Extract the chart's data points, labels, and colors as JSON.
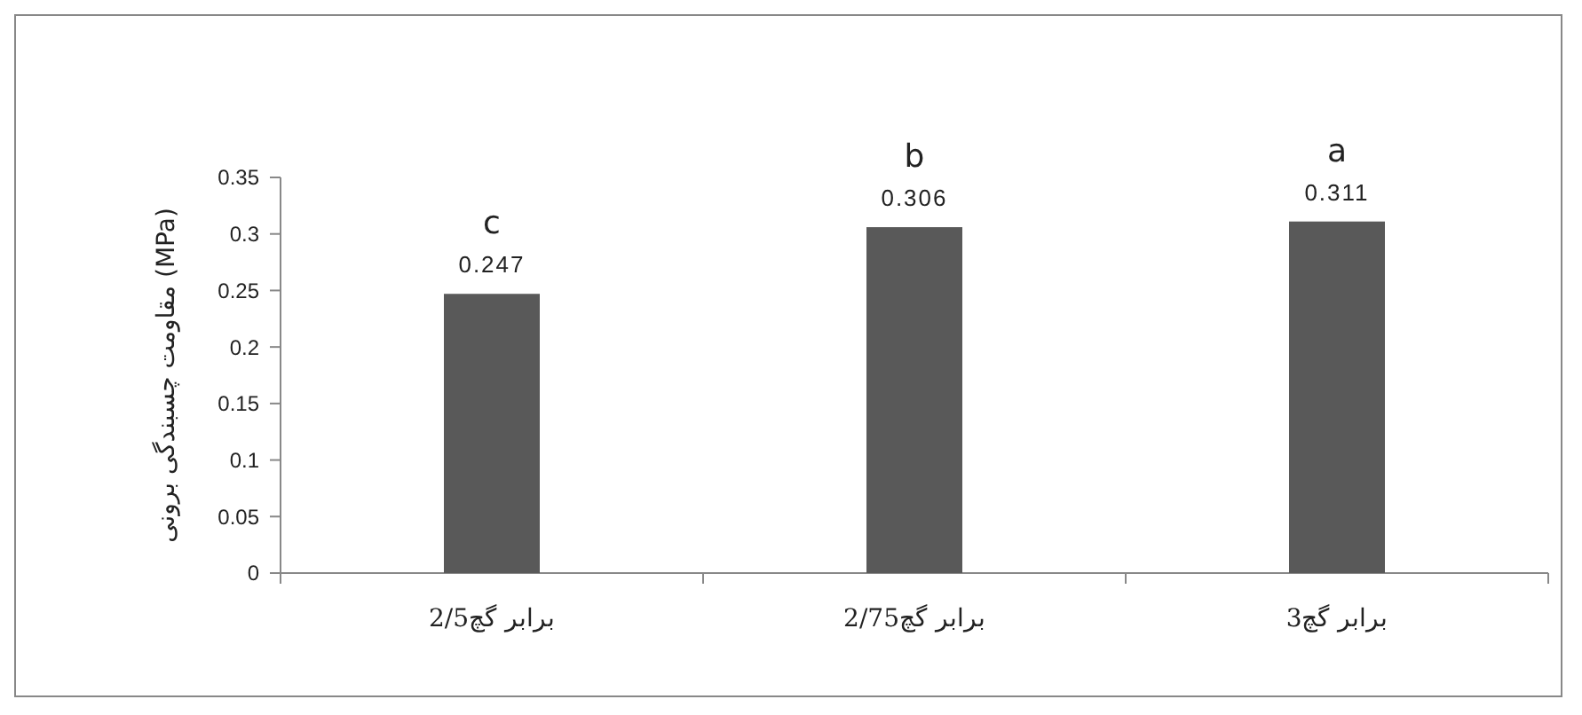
{
  "chart_data": {
    "type": "bar",
    "ylabel": "مقاومت چسبندگی برونی (MPa)",
    "categories": [
      "2/5برابر گچ",
      "2/75برابر گچ",
      "3برابر گچ"
    ],
    "values": [
      0.247,
      0.306,
      0.311
    ],
    "color": "#595959",
    "ylim": [
      0,
      0.35
    ],
    "yticks": [
      0,
      0.05,
      0.1,
      0.15,
      0.2,
      0.25,
      0.3,
      0.35
    ],
    "data_labels": true,
    "grid": false,
    "annotations": [
      {
        "text": "c",
        "x": "2/5برابر گچ",
        "y": 0.247
      },
      {
        "text": "b",
        "x": "2/75برابر گچ",
        "y": 0.306
      },
      {
        "text": "a",
        "x": "3برابر گچ",
        "y": 0.311
      }
    ]
  }
}
